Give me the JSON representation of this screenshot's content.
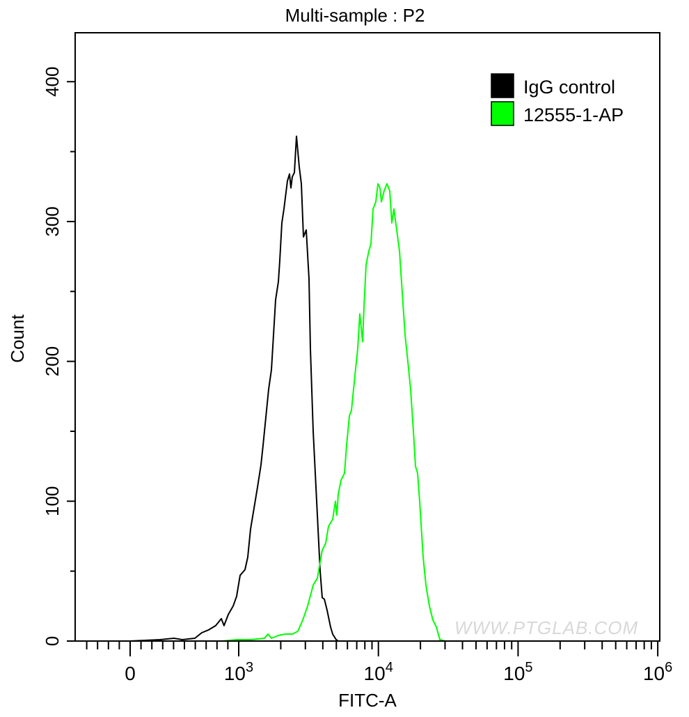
{
  "chart_data": {
    "type": "line",
    "title": "Multi-sample : P2",
    "xlabel": "FITC-A",
    "ylabel": "Count",
    "xscale": "biexponential",
    "xlim": [
      -506,
      1000000
    ],
    "ylim": [
      0,
      435
    ],
    "grid": false,
    "legend_placement": "top-right",
    "x_ticks": [
      {
        "value": 0,
        "base": "0",
        "exp": ""
      },
      {
        "value": 1000,
        "base": "10",
        "exp": "3"
      },
      {
        "value": 10000,
        "base": "10",
        "exp": "4"
      },
      {
        "value": 100000,
        "base": "10",
        "exp": "5"
      },
      {
        "value": 1000000,
        "base": "10",
        "exp": "6"
      }
    ],
    "y_ticks": [
      "0",
      "100",
      "200",
      "300",
      "400"
    ],
    "series": [
      {
        "name": "IgG control",
        "color": "#000000",
        "x": [
          0,
          276,
          404,
          481,
          596,
          660,
          724,
          788,
          840,
          865,
          904,
          949,
          981,
          1023,
          1109,
          1161,
          1215,
          1287,
          1363,
          1444,
          1494,
          1564,
          1638,
          1715,
          1774,
          1837,
          1923,
          1968,
          2037,
          2108,
          2157,
          2233,
          2311,
          2364,
          2419,
          2504,
          2592,
          2713,
          2808,
          2907,
          3043,
          3186,
          3261,
          3414,
          3533,
          3656,
          3828,
          3963,
          4102,
          4295,
          4548,
          4706,
          4984,
          5159,
          5401,
          5718,
          6057,
          6640,
          7194
        ],
        "y": [
          0,
          1,
          2,
          1,
          2,
          6,
          8,
          11,
          16,
          11,
          19,
          25,
          32,
          47,
          51,
          60,
          80,
          95,
          110,
          126,
          140,
          160,
          180,
          194,
          219,
          244,
          257,
          272,
          299,
          309,
          317,
          329,
          334,
          324,
          332,
          335,
          361,
          339,
          327,
          289,
          294,
          259,
          209,
          150,
          120,
          90,
          50,
          31,
          30,
          22,
          10,
          5,
          1,
          0,
          0,
          0,
          0,
          0,
          0
        ]
      },
      {
        "name": "12555-1-AP",
        "color": "#00ff00",
        "x": [
          853,
          981,
          1215,
          1528,
          1619,
          1715,
          1923,
          2157,
          2419,
          2649,
          2872,
          3115,
          3414,
          3656,
          3963,
          4196,
          4394,
          4706,
          4927,
          5041,
          5159,
          5401,
          5718,
          5920,
          6197,
          6415,
          6795,
          7112,
          7362,
          7533,
          7708,
          7887,
          8164,
          8546,
          8846,
          9156,
          9585,
          9920,
          10267,
          10505,
          10999,
          11515,
          12056,
          12478,
          12915,
          13521,
          14156,
          14821,
          15511,
          16244,
          17005,
          17805,
          18433,
          19080,
          19750,
          20908,
          21890,
          23180,
          24548,
          26009,
          27542,
          30185
        ],
        "y": [
          0,
          1,
          1,
          2,
          5,
          2,
          4,
          5,
          5,
          7,
          15,
          25,
          40,
          45,
          65,
          70,
          82,
          87,
          100,
          90,
          105,
          115,
          120,
          140,
          161,
          165,
          190,
          209,
          234,
          224,
          214,
          239,
          269,
          279,
          284,
          309,
          314,
          327,
          324,
          314,
          322,
          327,
          322,
          299,
          309,
          294,
          279,
          249,
          219,
          200,
          180,
          150,
          125,
          120,
          100,
          60,
          40,
          25,
          15,
          10,
          1,
          0
        ]
      }
    ],
    "watermark": "WWW.PTGLAB.COM"
  }
}
